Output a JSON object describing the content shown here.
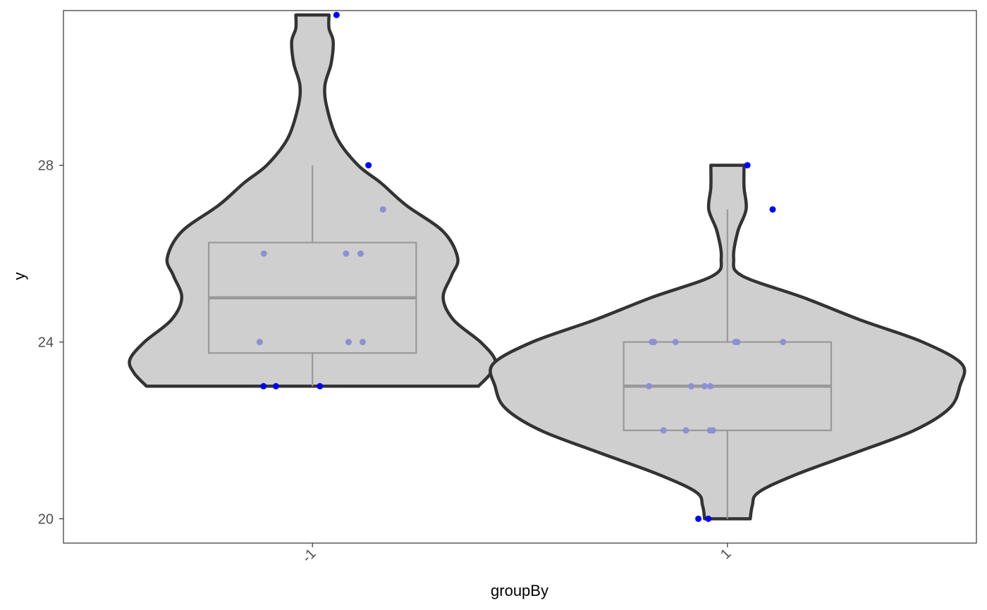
{
  "chart_data": {
    "type": "violin",
    "xlabel": "groupBy",
    "ylabel": "y",
    "categories": [
      "-1",
      "1"
    ],
    "ylim": [
      19.45,
      31.5
    ],
    "yticks": [
      20,
      24,
      28
    ],
    "grid": false,
    "groups": [
      {
        "label": "-1",
        "violin": {
          "y": [
            23,
            23.3,
            23.6,
            24,
            24.5,
            25,
            25.5,
            25.9,
            26.5,
            27.1,
            27.6,
            28,
            28.6,
            29.3,
            29.8,
            30.3,
            30.8,
            31.1,
            31.4
          ],
          "half_width": [
            0.8,
            0.86,
            0.88,
            0.81,
            0.68,
            0.63,
            0.67,
            0.7,
            0.63,
            0.45,
            0.33,
            0.22,
            0.12,
            0.07,
            0.06,
            0.09,
            0.1,
            0.08,
            0.08
          ]
        },
        "box": {
          "whisker_low": 23,
          "q1": 23.75,
          "median": 25,
          "q3": 26.25,
          "whisker_high": 28
        },
        "points": [
          {
            "x": -0.118,
            "y": 23
          },
          {
            "x": -0.088,
            "y": 23
          },
          {
            "x": 0.018,
            "y": 23
          },
          {
            "x": -0.127,
            "y": 24
          },
          {
            "x": 0.087,
            "y": 24
          },
          {
            "x": 0.121,
            "y": 24
          },
          {
            "x": -0.117,
            "y": 26
          },
          {
            "x": 0.081,
            "y": 26
          },
          {
            "x": 0.116,
            "y": 26
          },
          {
            "x": 0.17,
            "y": 27
          },
          {
            "x": 0.135,
            "y": 28
          },
          {
            "x": 0.058,
            "y": 31.4
          }
        ]
      },
      {
        "label": "1",
        "violin": {
          "y": [
            20,
            20.3,
            20.6,
            21,
            21.5,
            22,
            22.5,
            23,
            23.5,
            24,
            24.5,
            25,
            25.5,
            25.9,
            26.5,
            27,
            27.5,
            28
          ],
          "half_width": [
            0.11,
            0.12,
            0.15,
            0.33,
            0.62,
            0.9,
            1.07,
            1.12,
            1.13,
            0.94,
            0.64,
            0.37,
            0.07,
            0.03,
            0.05,
            0.09,
            0.08,
            0.08
          ]
        },
        "box": {
          "whisker_low": 20,
          "q1": 22,
          "median": 23,
          "q3": 24,
          "whisker_high": 27
        },
        "points": [
          {
            "x": -0.07,
            "y": 20
          },
          {
            "x": -0.046,
            "y": 20
          },
          {
            "x": -0.154,
            "y": 22
          },
          {
            "x": -0.1,
            "y": 22
          },
          {
            "x": -0.042,
            "y": 22
          },
          {
            "x": -0.035,
            "y": 22
          },
          {
            "x": -0.189,
            "y": 23
          },
          {
            "x": -0.087,
            "y": 23
          },
          {
            "x": -0.055,
            "y": 23
          },
          {
            "x": -0.041,
            "y": 23
          },
          {
            "x": -0.182,
            "y": 24
          },
          {
            "x": -0.177,
            "y": 24
          },
          {
            "x": -0.125,
            "y": 24
          },
          {
            "x": 0.019,
            "y": 24
          },
          {
            "x": 0.024,
            "y": 24
          },
          {
            "x": 0.134,
            "y": 24
          },
          {
            "x": 0.109,
            "y": 27
          },
          {
            "x": 0.048,
            "y": 28
          }
        ]
      }
    ],
    "colors": {
      "violin_fill": "#cfcfcf",
      "violin_stroke": "#333333",
      "box_stroke": "#999999",
      "point": "#0000ff",
      "point_dim": "#8f8fd4",
      "panel_border": "#333333",
      "tick_text": "#4d4d4d"
    }
  }
}
